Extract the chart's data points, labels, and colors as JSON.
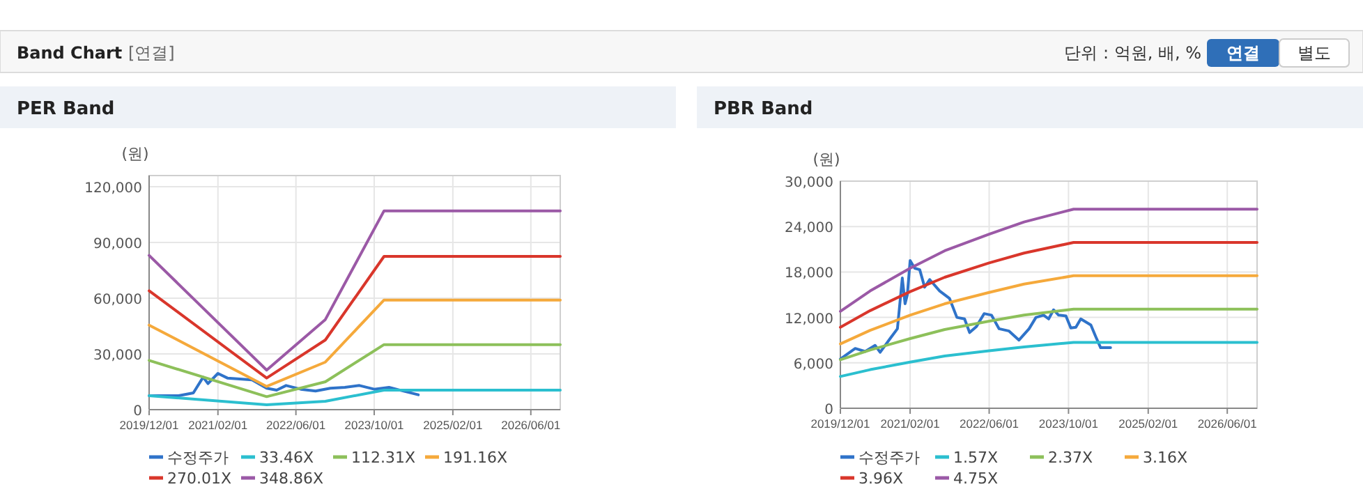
{
  "chart_data": [
    {
      "type": "other",
      "title": "Band Chart",
      "annotations": [
        "[연결]",
        "단위 : 억원, 배, %",
        "연결",
        "별도"
      ]
    },
    {
      "type": "line",
      "title": "PER Band",
      "ylabel": "(원)",
      "grid": true,
      "legend": "bottom",
      "marker": "none",
      "line_style": "solid",
      "xlim": [
        "2019-12-01",
        "2026-12-01"
      ],
      "xticks": [
        {
          "value": "2019-12-01",
          "label": "2019/12/01"
        },
        {
          "value": "2021-02-01",
          "label": "2021/02/01"
        },
        {
          "value": "2022-06-01",
          "label": "2022/06/01"
        },
        {
          "value": "2023-10-01",
          "label": "2023/10/01"
        },
        {
          "value": "2025-02-01",
          "label": "2025/02/01"
        },
        {
          "value": "2026-06-01",
          "label": "2026/06/01"
        }
      ],
      "ylim": [
        0,
        126000
      ],
      "yticks": [
        0,
        {
          "value": 30000,
          "label": "30,000"
        },
        {
          "value": 60000,
          "label": "60,000"
        },
        {
          "value": 90000,
          "label": "90,000"
        },
        {
          "value": 120000,
          "label": "120,000"
        }
      ],
      "series": [
        {
          "name": "수정주가",
          "color": "#2f73c9",
          "x": [
            "2019-12-01",
            "2020-06-01",
            "2020-09-01",
            "2020-11-01",
            "2020-12-01",
            "2021-02-01",
            "2021-04-01",
            "2021-09-01",
            "2021-12-01",
            "2022-02-01",
            "2022-04-01",
            "2022-07-01",
            "2022-10-01",
            "2023-01-01",
            "2023-04-01",
            "2023-07-01",
            "2023-10-01",
            "2024-01-01",
            "2024-04-01",
            "2024-07-01"
          ],
          "values": [
            7500,
            7500,
            9000,
            17500,
            14000,
            19500,
            17000,
            16000,
            11500,
            10500,
            13000,
            11000,
            10000,
            11500,
            12000,
            13000,
            11000,
            12000,
            10000,
            8000
          ]
        },
        {
          "name": "33.46X",
          "color": "#2bbfcf",
          "x": [
            "2019-12-01",
            "2021-12-01",
            "2022-12-01",
            "2023-12-01",
            "2026-12-01"
          ],
          "values": [
            7500,
            2600,
            4500,
            10500,
            10500
          ]
        },
        {
          "name": "112.31X",
          "color": "#8dc05a",
          "x": [
            "2019-12-01",
            "2021-12-01",
            "2022-12-01",
            "2023-12-01",
            "2026-12-01"
          ],
          "values": [
            26500,
            7000,
            15000,
            35000,
            35000
          ]
        },
        {
          "name": "191.16X",
          "color": "#f5a93b",
          "x": [
            "2019-12-01",
            "2021-12-01",
            "2022-12-01",
            "2023-12-01",
            "2026-12-01"
          ],
          "values": [
            45500,
            12500,
            25600,
            59000,
            59000
          ]
        },
        {
          "name": "270.01X",
          "color": "#d9362b",
          "x": [
            "2019-12-01",
            "2021-12-01",
            "2022-12-01",
            "2023-12-01",
            "2026-12-01"
          ],
          "values": [
            64000,
            17000,
            37500,
            82500,
            82500
          ]
        },
        {
          "name": "348.86X",
          "color": "#9b59a6",
          "x": [
            "2019-12-01",
            "2021-12-01",
            "2022-12-01",
            "2023-12-01",
            "2026-12-01"
          ],
          "values": [
            83000,
            21300,
            48500,
            107000,
            107000
          ]
        }
      ]
    },
    {
      "type": "line",
      "title": "PBR Band",
      "ylabel": "(원)",
      "grid": true,
      "legend": "bottom",
      "marker": "none",
      "line_style": "solid",
      "xlim": [
        "2019-12-01",
        "2026-12-01"
      ],
      "xticks": [
        {
          "value": "2019-12-01",
          "label": "2019/12/01"
        },
        {
          "value": "2021-02-01",
          "label": "2021/02/01"
        },
        {
          "value": "2022-06-01",
          "label": "2022/06/01"
        },
        {
          "value": "2023-10-01",
          "label": "2023/10/01"
        },
        {
          "value": "2025-02-01",
          "label": "2025/02/01"
        },
        {
          "value": "2026-06-01",
          "label": "2026/06/01"
        }
      ],
      "ylim": [
        0,
        30000
      ],
      "yticks": [
        0,
        {
          "value": 6000,
          "label": "6,000"
        },
        {
          "value": 12000,
          "label": "12,000"
        },
        {
          "value": 18000,
          "label": "18,000"
        },
        {
          "value": 24000,
          "label": "24,000"
        },
        {
          "value": 30000,
          "label": "30,000"
        }
      ],
      "series": [
        {
          "name": "수정주가",
          "color": "#2f73c9",
          "x": [
            "2019-12-01",
            "2020-03-01",
            "2020-05-01",
            "2020-07-01",
            "2020-08-01",
            "2020-10-01",
            "2020-11-15",
            "2020-12-15",
            "2021-01-01",
            "2021-01-15",
            "2021-02-01",
            "2021-03-01",
            "2021-04-01",
            "2021-05-01",
            "2021-06-01",
            "2021-08-01",
            "2021-10-01",
            "2021-11-15",
            "2022-01-01",
            "2022-02-01",
            "2022-03-15",
            "2022-05-01",
            "2022-06-15",
            "2022-08-01",
            "2022-10-01",
            "2022-12-01",
            "2023-02-01",
            "2023-03-15",
            "2023-05-01",
            "2023-06-01",
            "2023-07-01",
            "2023-08-01",
            "2023-09-15",
            "2023-10-15",
            "2023-11-15",
            "2023-12-15",
            "2024-02-15",
            "2024-03-15",
            "2024-04-15",
            "2024-06-15"
          ],
          "values": [
            6500,
            7900,
            7500,
            8300,
            7400,
            9200,
            10500,
            17200,
            13800,
            15000,
            19500,
            18500,
            18300,
            16000,
            17000,
            15500,
            14500,
            12000,
            11800,
            10000,
            10800,
            12500,
            12300,
            10500,
            10200,
            9000,
            10500,
            12000,
            12300,
            11800,
            13000,
            12300,
            12200,
            10600,
            10700,
            11800,
            11000,
            9500,
            8000,
            8000
          ]
        },
        {
          "name": "1.57X",
          "color": "#2bbfcf",
          "x": [
            "2019-12-01",
            "2020-06-01",
            "2021-02-01",
            "2021-09-01",
            "2022-06-01",
            "2023-01-01",
            "2023-11-01",
            "2026-12-01"
          ],
          "values": [
            4200,
            5100,
            6100,
            6900,
            7600,
            8100,
            8700,
            8700
          ]
        },
        {
          "name": "2.37X",
          "color": "#8dc05a",
          "x": [
            "2019-12-01",
            "2020-06-01",
            "2021-02-01",
            "2021-09-01",
            "2022-06-01",
            "2023-01-01",
            "2023-11-01",
            "2026-12-01"
          ],
          "values": [
            6400,
            7700,
            9200,
            10400,
            11500,
            12300,
            13100,
            13100
          ]
        },
        {
          "name": "3.16X",
          "color": "#f5a93b",
          "x": [
            "2019-12-01",
            "2020-06-01",
            "2021-02-01",
            "2021-09-01",
            "2022-06-01",
            "2023-01-01",
            "2023-11-01",
            "2026-12-01"
          ],
          "values": [
            8500,
            10300,
            12300,
            13800,
            15300,
            16400,
            17500,
            17500
          ]
        },
        {
          "name": "3.96X",
          "color": "#d9362b",
          "x": [
            "2019-12-01",
            "2020-06-01",
            "2021-02-01",
            "2021-09-01",
            "2022-06-01",
            "2023-01-01",
            "2023-11-01",
            "2026-12-01"
          ],
          "values": [
            10700,
            12900,
            15400,
            17300,
            19200,
            20500,
            21900,
            21900
          ]
        },
        {
          "name": "4.75X",
          "color": "#9b59a6",
          "x": [
            "2019-12-01",
            "2020-06-01",
            "2021-02-01",
            "2021-09-01",
            "2022-06-01",
            "2023-01-01",
            "2023-11-01",
            "2026-12-01"
          ],
          "values": [
            12800,
            15500,
            18500,
            20800,
            23000,
            24600,
            26300,
            26300
          ]
        }
      ]
    }
  ]
}
